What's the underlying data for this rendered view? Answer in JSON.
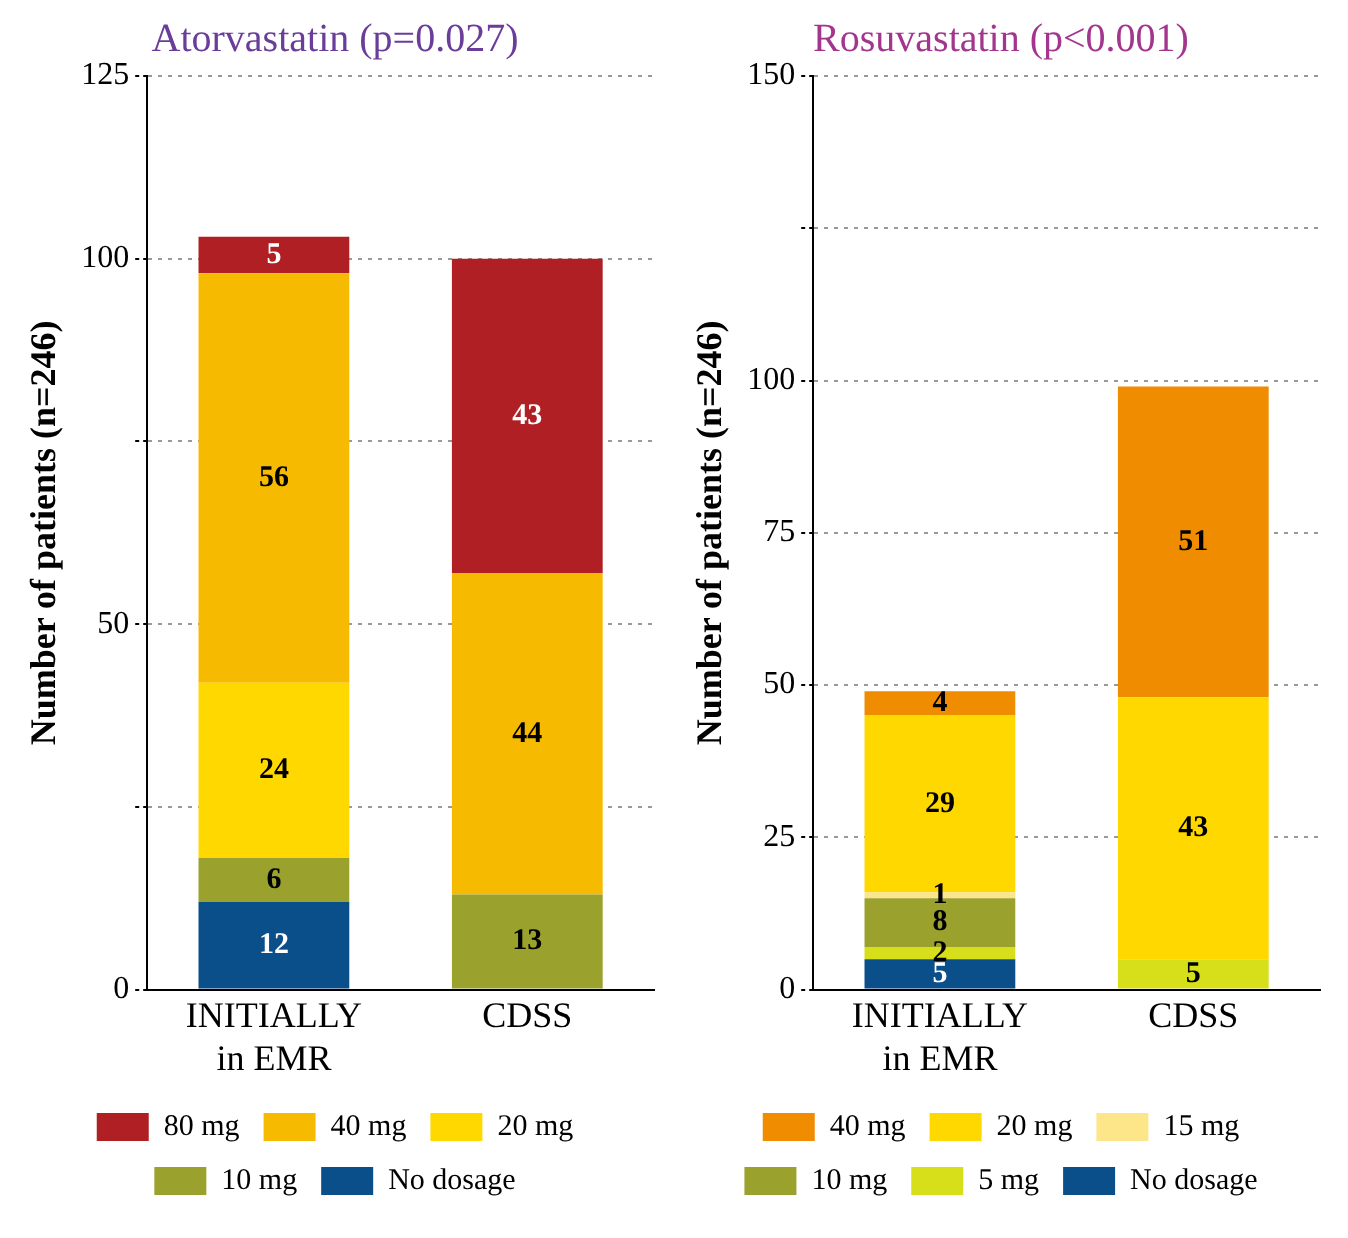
{
  "chart_data": [
    {
      "type": "bar",
      "title": "Atorvastatin (p=0.027)",
      "ylabel": "Number of patients (n=246)",
      "categories": [
        "INITIALLY\nin EMR",
        "CDSS"
      ],
      "stacked": true,
      "data_labels": true,
      "grid": "y",
      "legend": "bottom",
      "ylim": [
        0,
        125
      ],
      "yticks": [
        0,
        {
          "value": 25,
          "label": null
        },
        50,
        {
          "value": 75,
          "label": null
        },
        100,
        125
      ],
      "series": [
        {
          "name": "No dosage",
          "color": "#0b4f8a",
          "values": [
            12,
            null
          ]
        },
        {
          "name": "10 mg",
          "color": "#9aa12c",
          "values": [
            6,
            13
          ]
        },
        {
          "name": "20 mg",
          "color": "#ffd800",
          "values": [
            24,
            null
          ]
        },
        {
          "name": "40 mg",
          "color": "#f6bb00",
          "values": [
            56,
            44
          ]
        },
        {
          "name": "80 mg",
          "color": "#b01f24",
          "values": [
            5,
            43
          ]
        }
      ]
    },
    {
      "type": "bar",
      "title": "Rosuvastatin (p<0.001)",
      "ylabel": "Number of patients (n=246)",
      "categories": [
        "INITIALLY\nin EMR",
        "CDSS"
      ],
      "stacked": true,
      "data_labels": true,
      "grid": "y",
      "legend": "bottom",
      "ylim": [
        0,
        150
      ],
      "yticks": [
        0,
        25,
        50,
        75,
        100,
        {
          "value": 125,
          "label": null
        },
        150
      ],
      "series": [
        {
          "name": "No dosage",
          "color": "#0b4f8a",
          "values": [
            5,
            null
          ]
        },
        {
          "name": "5 mg",
          "color": "#d6df1a",
          "values": [
            2,
            5
          ]
        },
        {
          "name": "10 mg",
          "color": "#9aa12c",
          "values": [
            8,
            null
          ]
        },
        {
          "name": "15 mg",
          "color": "#fde68a",
          "values": [
            1,
            null
          ]
        },
        {
          "name": "20 mg",
          "color": "#ffd800",
          "values": [
            29,
            43
          ]
        },
        {
          "name": "40 mg",
          "color": "#ef8c00",
          "values": [
            4,
            51
          ]
        }
      ]
    }
  ]
}
